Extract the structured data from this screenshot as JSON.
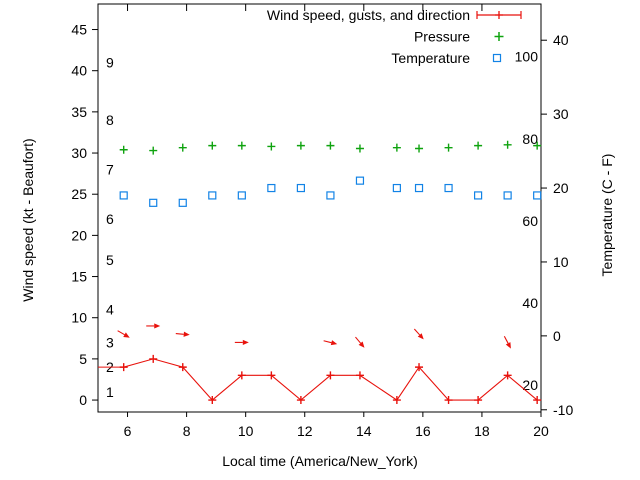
{
  "figure": {
    "background": "#ffffff",
    "text_color": "#000000"
  },
  "chart_data": {
    "type": "line",
    "title": "",
    "xlabel": "Local time (America/New_York)",
    "ylabel_left": "Wind speed (kt - Beaufort)",
    "ylabel_right": "Temperature (C - F)",
    "grid": false,
    "x_axis": {
      "range": [
        5.0,
        20.0
      ],
      "ticks": [
        6,
        8,
        10,
        12,
        14,
        16,
        18,
        20
      ]
    },
    "y_axis_left": {
      "range": [
        -1.45,
        48.1
      ],
      "ticks": [
        0,
        5,
        10,
        15,
        20,
        25,
        30,
        35,
        40,
        45
      ]
    },
    "y_axis_right": {
      "range": [
        -10.3,
        44.9
      ],
      "ticks": [
        -10,
        0,
        10,
        20,
        30,
        40
      ]
    },
    "beaufort_scale_labels": [
      {
        "label": "1",
        "kt": 1
      },
      {
        "label": "2",
        "kt": 4
      },
      {
        "label": "3",
        "kt": 7
      },
      {
        "label": "4",
        "kt": 11
      },
      {
        "label": "5",
        "kt": 17
      },
      {
        "label": "6",
        "kt": 22
      },
      {
        "label": "7",
        "kt": 28
      },
      {
        "label": "8",
        "kt": 34
      },
      {
        "label": "9",
        "kt": 41
      }
    ],
    "fahrenheit_scale_labels": [
      {
        "label": "20",
        "f": 20
      },
      {
        "label": "40",
        "f": 40
      },
      {
        "label": "60",
        "f": 60
      },
      {
        "label": "80",
        "f": 80
      },
      {
        "label": "100",
        "f": 100
      }
    ],
    "legend": {
      "position": "top-right-inside",
      "entries": [
        {
          "label": "Wind speed, gusts, and direction",
          "color": "#e8120c",
          "sample": "errorbar-line"
        },
        {
          "label": "Pressure",
          "color": "#0fa30f",
          "sample": "plus"
        },
        {
          "label": "Temperature",
          "color": "#1283e6",
          "sample": "open-square"
        }
      ]
    },
    "series": [
      {
        "name": "wind_speed",
        "axis": "left",
        "unit": "kt",
        "color": "#e8120c",
        "marker": "plus",
        "line": true,
        "first_point_is_edge": true,
        "x": [
          5.0,
          5.87,
          6.87,
          7.87,
          8.87,
          9.87,
          10.87,
          11.87,
          12.87,
          13.87,
          15.12,
          15.87,
          16.87,
          17.87,
          18.87,
          19.87
        ],
        "y": [
          4,
          4,
          5,
          4,
          0,
          3,
          3,
          0,
          3,
          3,
          0,
          4,
          0,
          0,
          3,
          0
        ]
      },
      {
        "name": "wind_gust_direction_arrows",
        "axis": "left",
        "unit": "kt",
        "color": "#e8120c",
        "points": [
          {
            "x": 5.87,
            "gust": 8,
            "angle_deg": 30
          },
          {
            "x": 6.87,
            "gust": 9,
            "angle_deg": 0
          },
          {
            "x": 7.87,
            "gust": 8,
            "angle_deg": 5
          },
          {
            "x": 9.87,
            "gust": 7,
            "angle_deg": 0
          },
          {
            "x": 12.87,
            "gust": 7,
            "angle_deg": 14
          },
          {
            "x": 13.87,
            "gust": 7,
            "angle_deg": 50
          },
          {
            "x": 15.87,
            "gust": 8,
            "angle_deg": 48
          },
          {
            "x": 18.87,
            "gust": 7,
            "angle_deg": 62
          }
        ]
      },
      {
        "name": "pressure",
        "axis": "left",
        "unit": "inHg",
        "color": "#0fa30f",
        "marker": "plus",
        "line": false,
        "x": [
          5.87,
          6.87,
          7.87,
          8.87,
          9.87,
          10.87,
          11.87,
          12.87,
          13.87,
          15.12,
          15.87,
          16.87,
          17.87,
          18.87,
          19.87
        ],
        "y": [
          30.4,
          30.3,
          30.65,
          30.9,
          30.9,
          30.8,
          30.9,
          30.9,
          30.55,
          30.65,
          30.55,
          30.65,
          30.9,
          31.0,
          30.9
        ]
      },
      {
        "name": "temperature",
        "axis": "right",
        "unit": "C",
        "color": "#1283e6",
        "marker": "open-square",
        "line": false,
        "x": [
          5.87,
          6.87,
          7.87,
          8.87,
          9.87,
          10.87,
          11.87,
          12.87,
          13.87,
          15.12,
          15.87,
          16.87,
          17.87,
          18.87,
          19.87
        ],
        "y": [
          19,
          18,
          18,
          19,
          19,
          20,
          20,
          19,
          21,
          20,
          20,
          20,
          19,
          19,
          19
        ]
      }
    ]
  }
}
